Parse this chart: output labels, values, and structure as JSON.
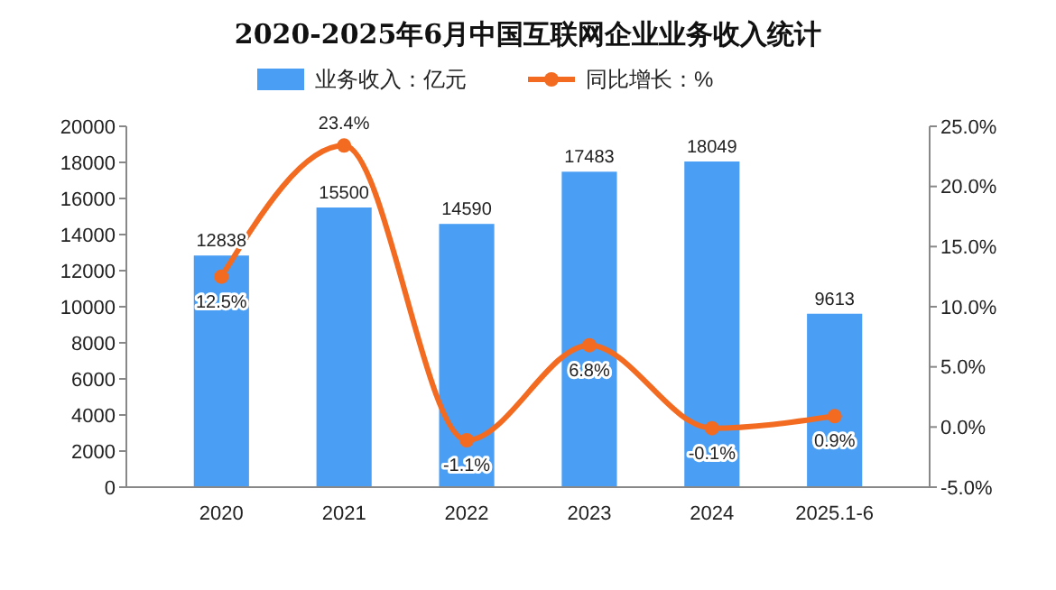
{
  "chart_data": {
    "type": "bar",
    "title": "2020-2025年6月中国互联网企业业务收入统计",
    "categories": [
      "2020",
      "2021",
      "2022",
      "2023",
      "2024",
      "2025.1-6"
    ],
    "series": [
      {
        "name": "业务收入：亿元",
        "color": "#4a9ff5",
        "values": [
          12838,
          15500,
          14590,
          17483,
          18049,
          9613
        ],
        "value_labels": [
          "12838",
          "15500",
          "14590",
          "17483",
          "18049",
          "9613"
        ]
      },
      {
        "name": "同比增长：%",
        "type": "line",
        "axis": "y2",
        "color": "#f26b21",
        "marker": "circle",
        "values": [
          12.5,
          23.4,
          -1.1,
          6.8,
          -0.1,
          0.9
        ],
        "value_labels": [
          "12.5%",
          "23.4%",
          "-1.1%",
          "6.8%",
          "-0.1%",
          "0.9%"
        ]
      }
    ],
    "ylim": [
      0,
      20000
    ],
    "yticks": [
      0,
      2000,
      4000,
      6000,
      8000,
      10000,
      12000,
      14000,
      16000,
      18000,
      20000
    ],
    "y2lim": [
      -5,
      25
    ],
    "y2ticks": [
      {
        "value": -5,
        "label": "-5.0%"
      },
      {
        "value": 0,
        "label": "0.0%"
      },
      {
        "value": 5,
        "label": "5.0%"
      },
      {
        "value": 10,
        "label": "10.0%"
      },
      {
        "value": 15,
        "label": "15.0%"
      },
      {
        "value": 20,
        "label": "20.0%"
      },
      {
        "value": 25,
        "label": "25.0%"
      }
    ],
    "legend": "top",
    "grid": false
  }
}
